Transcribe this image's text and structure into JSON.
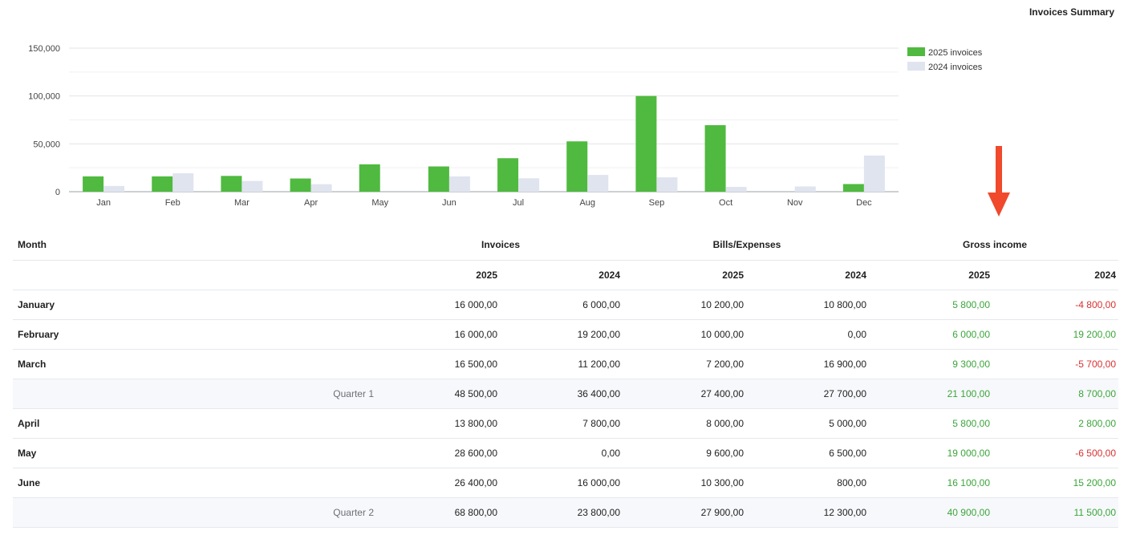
{
  "page_title": "Invoices Summary",
  "colors": {
    "series2025": "#4fba3f",
    "series2024": "#dfe4ef",
    "positive": "#3aa53a",
    "negative": "#d93030",
    "arrow": "#f0492c"
  },
  "chart_data": {
    "type": "bar",
    "categories": [
      "Jan",
      "Feb",
      "Mar",
      "Apr",
      "May",
      "Jun",
      "Jul",
      "Aug",
      "Sep",
      "Oct",
      "Nov",
      "Dec"
    ],
    "series": [
      {
        "name": "2025 invoices",
        "values": [
          16000,
          16000,
          16500,
          13800,
          28600,
          26400,
          35000,
          52600,
          100000,
          69500,
          0,
          8000
        ]
      },
      {
        "name": "2024 invoices",
        "values": [
          6000,
          19200,
          11200,
          7800,
          0,
          16000,
          14000,
          17500,
          15000,
          5000,
          5500,
          37800
        ]
      }
    ],
    "yticks": [
      "0",
      "50,000",
      "100,000",
      "150,000"
    ],
    "ylim": [
      0,
      150000
    ],
    "grid": true,
    "legend_position": "top-right"
  },
  "table": {
    "headers": {
      "month": "Month",
      "invoices": "Invoices",
      "bills": "Bills/Expenses",
      "gross": "Gross income"
    },
    "years": [
      "2025",
      "2024",
      "2025",
      "2024",
      "2025",
      "2024"
    ],
    "rows": [
      {
        "type": "month",
        "label": "January",
        "cells": [
          "16 000,00",
          "6 000,00",
          "10 200,00",
          "10 800,00",
          "5 800,00",
          "-4 800,00"
        ],
        "signs": [
          "",
          "",
          "",
          "",
          "pos",
          "neg"
        ]
      },
      {
        "type": "month",
        "label": "February",
        "cells": [
          "16 000,00",
          "19 200,00",
          "10 000,00",
          "0,00",
          "6 000,00",
          "19 200,00"
        ],
        "signs": [
          "",
          "",
          "",
          "",
          "pos",
          "pos"
        ]
      },
      {
        "type": "month",
        "label": "March",
        "cells": [
          "16 500,00",
          "11 200,00",
          "7 200,00",
          "16 900,00",
          "9 300,00",
          "-5 700,00"
        ],
        "signs": [
          "",
          "",
          "",
          "",
          "pos",
          "neg"
        ]
      },
      {
        "type": "quarter",
        "label": "Quarter 1",
        "cells": [
          "48 500,00",
          "36 400,00",
          "27 400,00",
          "27 700,00",
          "21 100,00",
          "8 700,00"
        ],
        "signs": [
          "",
          "",
          "",
          "",
          "pos",
          "pos"
        ]
      },
      {
        "type": "month",
        "label": "April",
        "cells": [
          "13 800,00",
          "7 800,00",
          "8 000,00",
          "5 000,00",
          "5 800,00",
          "2 800,00"
        ],
        "signs": [
          "",
          "",
          "",
          "",
          "pos",
          "pos"
        ]
      },
      {
        "type": "month",
        "label": "May",
        "cells": [
          "28 600,00",
          "0,00",
          "9 600,00",
          "6 500,00",
          "19 000,00",
          "-6 500,00"
        ],
        "signs": [
          "",
          "",
          "",
          "",
          "pos",
          "neg"
        ]
      },
      {
        "type": "month",
        "label": "June",
        "cells": [
          "26 400,00",
          "16 000,00",
          "10 300,00",
          "800,00",
          "16 100,00",
          "15 200,00"
        ],
        "signs": [
          "",
          "",
          "",
          "",
          "pos",
          "pos"
        ]
      },
      {
        "type": "quarter",
        "label": "Quarter 2",
        "cells": [
          "68 800,00",
          "23 800,00",
          "27 900,00",
          "12 300,00",
          "40 900,00",
          "11 500,00"
        ],
        "signs": [
          "",
          "",
          "",
          "",
          "pos",
          "pos"
        ]
      }
    ]
  }
}
